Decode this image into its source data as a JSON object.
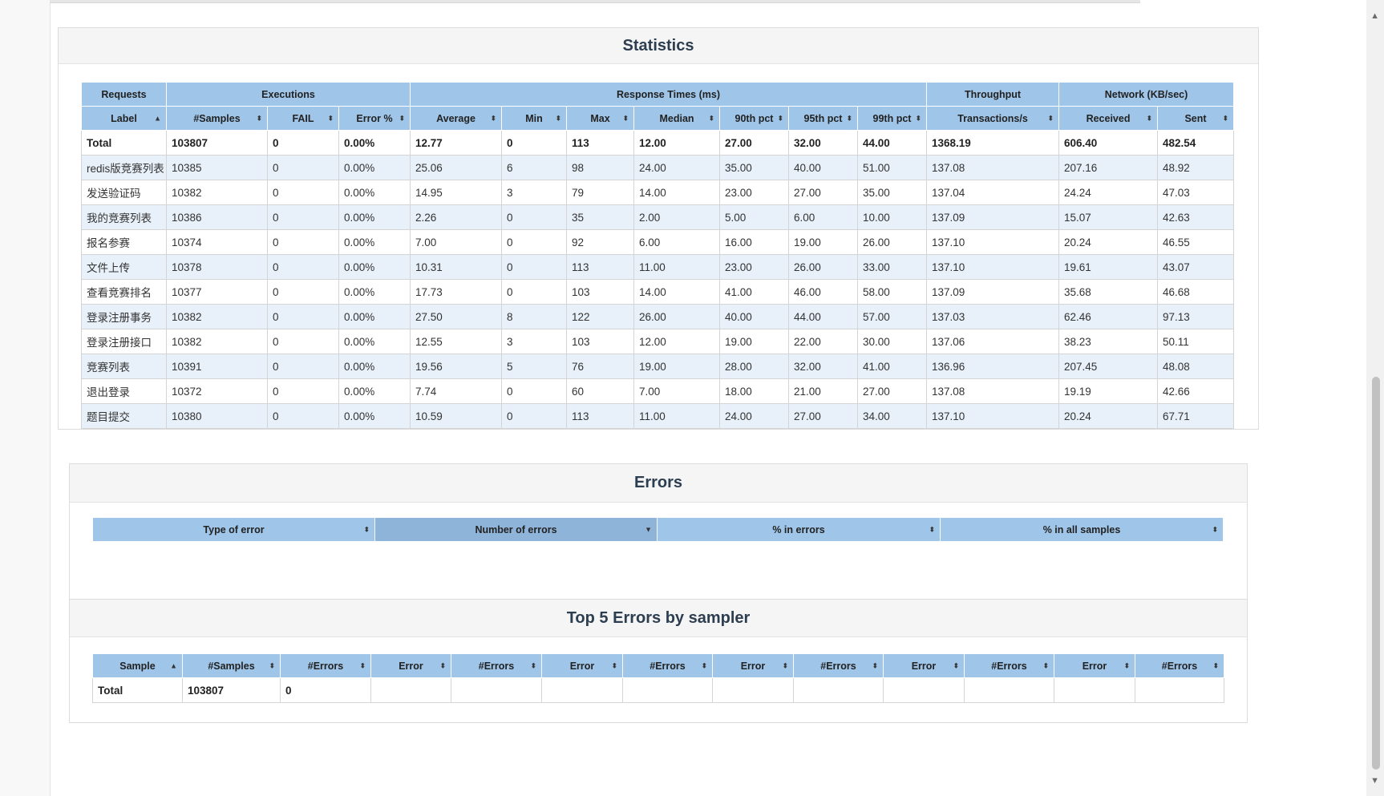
{
  "statistics": {
    "title": "Statistics",
    "group_headers": [
      "Requests",
      "Executions",
      "Response Times (ms)",
      "Throughput",
      "Network (KB/sec)"
    ],
    "columns": [
      "Label",
      "#Samples",
      "FAIL",
      "Error %",
      "Average",
      "Min",
      "Max",
      "Median",
      "90th pct",
      "95th pct",
      "99th pct",
      "Transactions/s",
      "Received",
      "Sent"
    ],
    "total": [
      "Total",
      "103807",
      "0",
      "0.00%",
      "12.77",
      "0",
      "113",
      "12.00",
      "27.00",
      "32.00",
      "44.00",
      "1368.19",
      "606.40",
      "482.54"
    ],
    "rows": [
      [
        "redis版竞赛列表",
        "10385",
        "0",
        "0.00%",
        "25.06",
        "6",
        "98",
        "24.00",
        "35.00",
        "40.00",
        "51.00",
        "137.08",
        "207.16",
        "48.92"
      ],
      [
        "发送验证码",
        "10382",
        "0",
        "0.00%",
        "14.95",
        "3",
        "79",
        "14.00",
        "23.00",
        "27.00",
        "35.00",
        "137.04",
        "24.24",
        "47.03"
      ],
      [
        "我的竞赛列表",
        "10386",
        "0",
        "0.00%",
        "2.26",
        "0",
        "35",
        "2.00",
        "5.00",
        "6.00",
        "10.00",
        "137.09",
        "15.07",
        "42.63"
      ],
      [
        "报名参赛",
        "10374",
        "0",
        "0.00%",
        "7.00",
        "0",
        "92",
        "6.00",
        "16.00",
        "19.00",
        "26.00",
        "137.10",
        "20.24",
        "46.55"
      ],
      [
        "文件上传",
        "10378",
        "0",
        "0.00%",
        "10.31",
        "0",
        "113",
        "11.00",
        "23.00",
        "26.00",
        "33.00",
        "137.10",
        "19.61",
        "43.07"
      ],
      [
        "查看竞赛排名",
        "10377",
        "0",
        "0.00%",
        "17.73",
        "0",
        "103",
        "14.00",
        "41.00",
        "46.00",
        "58.00",
        "137.09",
        "35.68",
        "46.68"
      ],
      [
        "登录注册事务",
        "10382",
        "0",
        "0.00%",
        "27.50",
        "8",
        "122",
        "26.00",
        "40.00",
        "44.00",
        "57.00",
        "137.03",
        "62.46",
        "97.13"
      ],
      [
        "登录注册接口",
        "10382",
        "0",
        "0.00%",
        "12.55",
        "3",
        "103",
        "12.00",
        "19.00",
        "22.00",
        "30.00",
        "137.06",
        "38.23",
        "50.11"
      ],
      [
        "竞赛列表",
        "10391",
        "0",
        "0.00%",
        "19.56",
        "5",
        "76",
        "19.00",
        "28.00",
        "32.00",
        "41.00",
        "136.96",
        "207.45",
        "48.08"
      ],
      [
        "退出登录",
        "10372",
        "0",
        "0.00%",
        "7.74",
        "0",
        "60",
        "7.00",
        "18.00",
        "21.00",
        "27.00",
        "137.08",
        "19.19",
        "42.66"
      ],
      [
        "题目提交",
        "10380",
        "0",
        "0.00%",
        "10.59",
        "0",
        "113",
        "11.00",
        "24.00",
        "27.00",
        "34.00",
        "137.10",
        "20.24",
        "67.71"
      ]
    ]
  },
  "errors": {
    "title": "Errors",
    "columns": [
      "Type of error",
      "Number of errors",
      "% in errors",
      "% in all samples"
    ]
  },
  "top5": {
    "title": "Top 5 Errors by sampler",
    "columns": [
      "Sample",
      "#Samples",
      "#Errors",
      "Error",
      "#Errors",
      "Error",
      "#Errors",
      "Error",
      "#Errors",
      "Error",
      "#Errors",
      "Error",
      "#Errors"
    ],
    "total": [
      "Total",
      "103807",
      "0",
      "",
      "",
      "",
      "",
      "",
      "",
      "",
      "",
      "",
      ""
    ]
  },
  "icons": {
    "sort_both": "sort-both-icon",
    "sort_asc": "sort-asc-icon",
    "sort_desc": "sort-desc-icon",
    "scroll_up": "scroll-up-arrow-icon",
    "scroll_down": "scroll-down-arrow-icon"
  }
}
